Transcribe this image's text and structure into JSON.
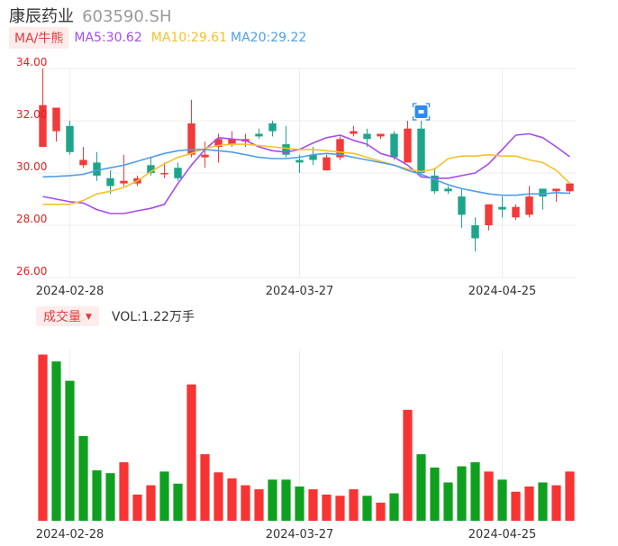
{
  "header": {
    "name": "康辰药业",
    "code": "603590.SH"
  },
  "ma_legend": {
    "tag": "MA/牛熊",
    "ma5": "MA5:30.62",
    "ma10": "MA10:29.61",
    "ma20": "MA20:29.22"
  },
  "volume_legend": {
    "tag": "成交量",
    "vol": "VOL:1.22万手"
  },
  "colors": {
    "up": "#f23a3a",
    "down": "#1da58b",
    "vol_up": "#f83333",
    "vol_down": "#10a020",
    "ma5": "#a64bef",
    "ma10": "#f5c12a",
    "ma20": "#4f9ee8",
    "axis_text": "#e02020",
    "date_text": "#333333",
    "grid": "#ececec"
  },
  "chart_data": [
    {
      "type": "candlestick",
      "title": "",
      "ylim": [
        26,
        34
      ],
      "yticks": [
        "34.00",
        "32.00",
        "30.00",
        "28.00",
        "26.00"
      ],
      "x_tick_labels": [
        {
          "index": 2,
          "label": "2024-02-28"
        },
        {
          "index": 19,
          "label": "2024-03-27"
        },
        {
          "index": 34,
          "label": "2024-04-25"
        }
      ],
      "grid": true,
      "marker_index": 28,
      "candles": [
        {
          "o": 31.0,
          "c": 32.6,
          "h": 34.0,
          "l": 31.0
        },
        {
          "o": 31.6,
          "c": 32.5,
          "h": 32.5,
          "l": 31.2
        },
        {
          "o": 31.8,
          "c": 30.8,
          "h": 32.0,
          "l": 30.7
        },
        {
          "o": 30.3,
          "c": 30.5,
          "h": 31.0,
          "l": 30.2
        },
        {
          "o": 30.4,
          "c": 29.9,
          "h": 30.8,
          "l": 29.7
        },
        {
          "o": 29.8,
          "c": 29.5,
          "h": 30.1,
          "l": 29.2
        },
        {
          "o": 29.6,
          "c": 29.7,
          "h": 30.7,
          "l": 29.5
        },
        {
          "o": 29.6,
          "c": 29.8,
          "h": 29.9,
          "l": 29.5
        },
        {
          "o": 30.3,
          "c": 30.0,
          "h": 30.6,
          "l": 29.9
        },
        {
          "o": 30.0,
          "c": 30.0,
          "h": 30.4,
          "l": 29.8
        },
        {
          "o": 30.2,
          "c": 29.8,
          "h": 30.4,
          "l": 29.7
        },
        {
          "o": 30.7,
          "c": 31.9,
          "h": 32.8,
          "l": 30.6
        },
        {
          "o": 30.6,
          "c": 30.7,
          "h": 31.2,
          "l": 30.2
        },
        {
          "o": 31.0,
          "c": 31.3,
          "h": 31.5,
          "l": 30.4
        },
        {
          "o": 31.1,
          "c": 31.3,
          "h": 31.6,
          "l": 31.0
        },
        {
          "o": 31.2,
          "c": 31.3,
          "h": 31.5,
          "l": 31.0
        },
        {
          "o": 31.5,
          "c": 31.4,
          "h": 31.7,
          "l": 31.3
        },
        {
          "o": 31.9,
          "c": 31.6,
          "h": 32.0,
          "l": 31.4
        },
        {
          "o": 31.1,
          "c": 30.7,
          "h": 31.8,
          "l": 30.6
        },
        {
          "o": 30.5,
          "c": 30.4,
          "h": 30.7,
          "l": 30.0
        },
        {
          "o": 30.7,
          "c": 30.5,
          "h": 31.0,
          "l": 30.3
        },
        {
          "o": 30.1,
          "c": 30.6,
          "h": 30.7,
          "l": 30.1
        },
        {
          "o": 30.6,
          "c": 31.3,
          "h": 31.4,
          "l": 30.5
        },
        {
          "o": 31.5,
          "c": 31.6,
          "h": 31.8,
          "l": 31.4
        },
        {
          "o": 31.5,
          "c": 31.3,
          "h": 31.7,
          "l": 31.0
        },
        {
          "o": 31.4,
          "c": 31.5,
          "h": 31.5,
          "l": 31.3
        },
        {
          "o": 31.5,
          "c": 30.6,
          "h": 31.6,
          "l": 30.5
        },
        {
          "o": 30.4,
          "c": 31.7,
          "h": 32.0,
          "l": 30.4
        },
        {
          "o": 31.7,
          "c": 30.0,
          "h": 32.0,
          "l": 29.9
        },
        {
          "o": 29.9,
          "c": 29.3,
          "h": 30.2,
          "l": 29.2
        },
        {
          "o": 29.4,
          "c": 29.3,
          "h": 29.5,
          "l": 29.2
        },
        {
          "o": 29.1,
          "c": 28.4,
          "h": 29.4,
          "l": 27.9
        },
        {
          "o": 28.0,
          "c": 27.5,
          "h": 28.3,
          "l": 27.0
        },
        {
          "o": 28.0,
          "c": 28.8,
          "h": 28.8,
          "l": 27.8
        },
        {
          "o": 28.7,
          "c": 28.6,
          "h": 29.1,
          "l": 28.3
        },
        {
          "o": 28.3,
          "c": 28.7,
          "h": 28.8,
          "l": 28.2
        },
        {
          "o": 28.4,
          "c": 29.1,
          "h": 29.5,
          "l": 28.3
        },
        {
          "o": 29.4,
          "c": 29.1,
          "h": 29.4,
          "l": 28.6
        },
        {
          "o": 29.3,
          "c": 29.4,
          "h": 29.4,
          "l": 28.9
        },
        {
          "o": 29.3,
          "c": 29.6,
          "h": 29.6,
          "l": 29.2
        }
      ],
      "series": [
        {
          "name": "MA5",
          "values": [
            29.1,
            29.0,
            28.9,
            28.85,
            28.6,
            28.45,
            28.45,
            28.55,
            28.65,
            28.8,
            29.6,
            30.3,
            30.9,
            31.35,
            31.3,
            31.25,
            31.0,
            30.85,
            30.8,
            30.9,
            31.15,
            31.35,
            31.45,
            31.25,
            31.1,
            30.75,
            30.6,
            30.3,
            29.85,
            29.8,
            29.8,
            29.9,
            30.0,
            30.35,
            30.9,
            31.45,
            31.5,
            31.35,
            31.0,
            30.62
          ]
        },
        {
          "name": "MA10",
          "values": [
            28.8,
            28.8,
            28.8,
            28.95,
            29.2,
            29.3,
            29.45,
            29.7,
            30.05,
            30.35,
            30.6,
            30.75,
            30.95,
            31.05,
            31.1,
            31.1,
            31.05,
            31.0,
            30.95,
            30.9,
            30.9,
            30.85,
            30.8,
            30.75,
            30.6,
            30.45,
            30.3,
            30.15,
            30.05,
            30.15,
            30.55,
            30.65,
            30.65,
            30.7,
            30.65,
            30.65,
            30.5,
            30.4,
            30.1,
            29.61
          ]
        },
        {
          "name": "MA20",
          "values": [
            29.85,
            29.87,
            29.9,
            29.95,
            30.1,
            30.2,
            30.3,
            30.45,
            30.6,
            30.75,
            30.85,
            30.9,
            30.9,
            30.85,
            30.8,
            30.7,
            30.6,
            30.55,
            30.55,
            30.6,
            30.7,
            30.75,
            30.7,
            30.6,
            30.5,
            30.4,
            30.3,
            30.1,
            29.95,
            29.75,
            29.55,
            29.4,
            29.3,
            29.2,
            29.15,
            29.15,
            29.2,
            29.2,
            29.25,
            29.22
          ]
        }
      ]
    },
    {
      "type": "bar",
      "title": "Volume",
      "categories_count": 40,
      "unit": "万手",
      "values": [
        4.12,
        3.95,
        3.47,
        2.1,
        1.25,
        1.18,
        1.45,
        0.65,
        0.88,
        1.22,
        0.92,
        3.38,
        1.65,
        1.2,
        1.05,
        0.88,
        0.78,
        1.02,
        1.02,
        0.85,
        0.78,
        0.65,
        0.62,
        0.78,
        0.62,
        0.45,
        0.68,
        2.75,
        1.65,
        1.32,
        0.95,
        1.35,
        1.45,
        1.22,
        1.02,
        0.72,
        0.85,
        0.95,
        0.88,
        1.22
      ],
      "up": [
        true,
        false,
        false,
        false,
        false,
        false,
        true,
        true,
        true,
        false,
        false,
        true,
        true,
        true,
        true,
        true,
        true,
        false,
        false,
        false,
        true,
        true,
        true,
        true,
        false,
        true,
        false,
        true,
        false,
        false,
        false,
        false,
        false,
        true,
        false,
        true,
        true,
        false,
        true,
        true
      ],
      "x_tick_labels": [
        {
          "index": 2,
          "label": "2024-02-28"
        },
        {
          "index": 19,
          "label": "2024-03-27"
        },
        {
          "index": 34,
          "label": "2024-04-25"
        }
      ]
    }
  ]
}
